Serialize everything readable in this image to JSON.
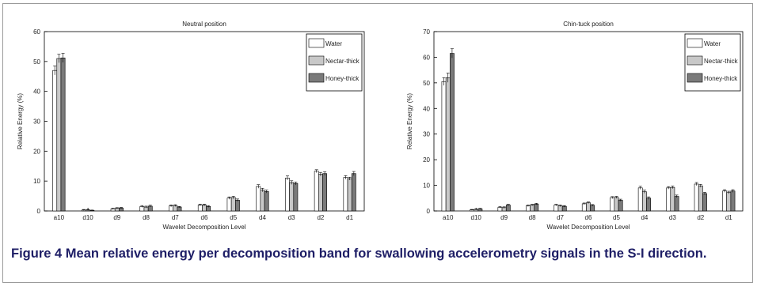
{
  "figure": {
    "caption_label": "Figure 4",
    "caption_text": "Mean relative energy per decomposition band for swallowing accelerometry signals in the S-I direction."
  },
  "colors": {
    "water": "#ffffff",
    "nectar_thick": "#c8c8c8",
    "honey_thick": "#7a7a7a",
    "caption": "#1e1e66"
  },
  "chart_data": [
    {
      "type": "bar",
      "title": "Neutral position",
      "xlabel": "Wavelet Decomposition Level",
      "ylabel": "Relative Energy (%)",
      "ylim": [
        0,
        60
      ],
      "yticks": [
        0,
        10,
        20,
        30,
        40,
        50,
        60
      ],
      "categories": [
        "a10",
        "d10",
        "d9",
        "d8",
        "d7",
        "d6",
        "d5",
        "d4",
        "d3",
        "d2",
        "d1"
      ],
      "legend_position": "top-right",
      "series": [
        {
          "name": "Water",
          "values": [
            47.0,
            0.3,
            0.7,
            1.5,
            1.7,
            2.0,
            4.3,
            8.2,
            11.0,
            13.3,
            11.2
          ],
          "errors": [
            1.5,
            0.2,
            0.2,
            0.3,
            0.3,
            0.3,
            0.4,
            0.6,
            0.7,
            0.5,
            0.6
          ]
        },
        {
          "name": "Nectar-thick",
          "values": [
            51.0,
            0.3,
            0.9,
            1.3,
            1.8,
            2.0,
            4.5,
            7.0,
            9.5,
            12.3,
            10.8
          ],
          "errors": [
            1.4,
            0.2,
            0.2,
            0.3,
            0.3,
            0.3,
            0.4,
            0.6,
            0.6,
            0.6,
            0.5
          ]
        },
        {
          "name": "Honey-thick",
          "values": [
            51.2,
            0.2,
            1.0,
            1.6,
            1.3,
            1.5,
            3.6,
            6.5,
            9.2,
            12.5,
            12.5
          ],
          "errors": [
            1.5,
            0.1,
            0.2,
            0.3,
            0.2,
            0.3,
            0.4,
            0.5,
            0.5,
            0.6,
            0.7
          ]
        }
      ]
    },
    {
      "type": "bar",
      "title": "Chin-tuck position",
      "xlabel": "Wavelet Decomposition Level",
      "ylabel": "Relative Energy (%)",
      "ylim": [
        0,
        70
      ],
      "yticks": [
        0,
        10,
        20,
        30,
        40,
        50,
        60,
        70
      ],
      "categories": [
        "a10",
        "d10",
        "d9",
        "d8",
        "d7",
        "d6",
        "d5",
        "d4",
        "d3",
        "d2",
        "d1"
      ],
      "legend_position": "top-right",
      "series": [
        {
          "name": "Water",
          "values": [
            50.5,
            0.4,
            1.4,
            2.0,
            2.3,
            2.8,
            5.2,
            9.0,
            9.0,
            10.5,
            7.8
          ],
          "errors": [
            1.5,
            0.2,
            0.3,
            0.3,
            0.3,
            0.3,
            0.4,
            0.6,
            0.5,
            0.6,
            0.5
          ]
        },
        {
          "name": "Nectar-thick",
          "values": [
            52.0,
            0.6,
            1.3,
            2.3,
            2.0,
            3.2,
            5.3,
            7.5,
            9.2,
            9.8,
            7.2
          ],
          "errors": [
            1.8,
            0.2,
            0.3,
            0.3,
            0.3,
            0.3,
            0.4,
            0.6,
            0.5,
            0.6,
            0.5
          ]
        },
        {
          "name": "Honey-thick",
          "values": [
            61.5,
            0.8,
            2.3,
            2.7,
            1.8,
            2.2,
            4.2,
            5.0,
            5.7,
            6.8,
            7.8
          ],
          "errors": [
            1.8,
            0.2,
            0.3,
            0.3,
            0.3,
            0.3,
            0.4,
            0.5,
            0.5,
            0.5,
            0.5
          ]
        }
      ]
    }
  ]
}
